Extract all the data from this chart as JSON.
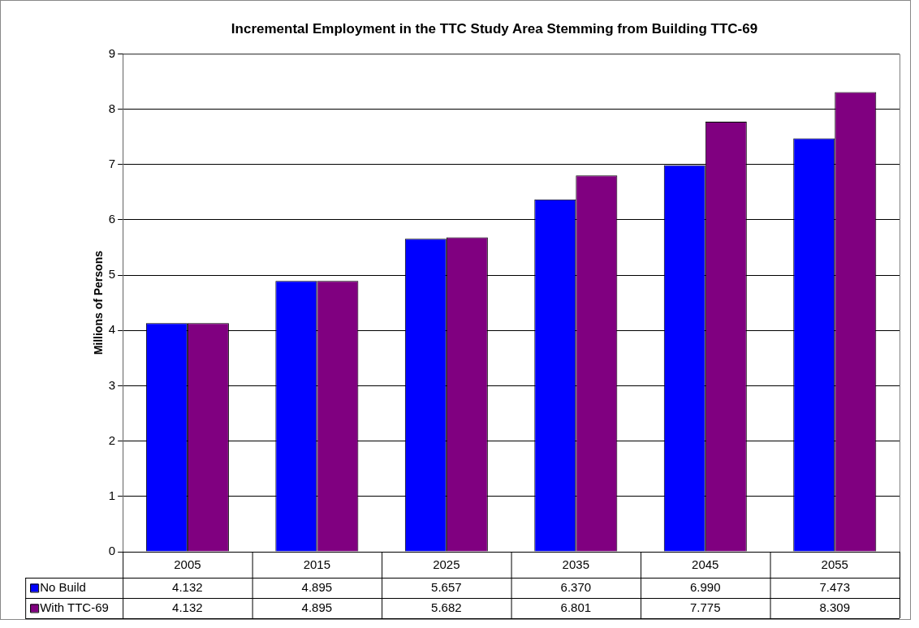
{
  "chart_data": {
    "type": "bar",
    "title": "Incremental Employment in the TTC Study Area Stemming from Building TTC-69",
    "ylabel": "Millions of Persons",
    "categories": [
      "2005",
      "2015",
      "2025",
      "2035",
      "2045",
      "2055"
    ],
    "series": [
      {
        "name": "No Build",
        "color": "#0000ff",
        "values": [
          4.132,
          4.895,
          5.657,
          6.37,
          6.99,
          7.473
        ],
        "value_labels": [
          "4.132",
          "4.895",
          "5.657",
          "6.370",
          "6.990",
          "7.473"
        ]
      },
      {
        "name": "With TTC-69",
        "color": "#800080",
        "values": [
          4.132,
          4.895,
          5.682,
          6.801,
          7.775,
          8.309
        ],
        "value_labels": [
          "4.132",
          "4.895",
          "5.682",
          "6.801",
          "7.775",
          "8.309"
        ]
      }
    ],
    "legend": "bottom left",
    "ylim": [
      0,
      9
    ],
    "yticks": [
      0,
      1,
      2,
      3,
      4,
      5,
      6,
      7,
      8,
      9
    ],
    "grid": "y"
  }
}
